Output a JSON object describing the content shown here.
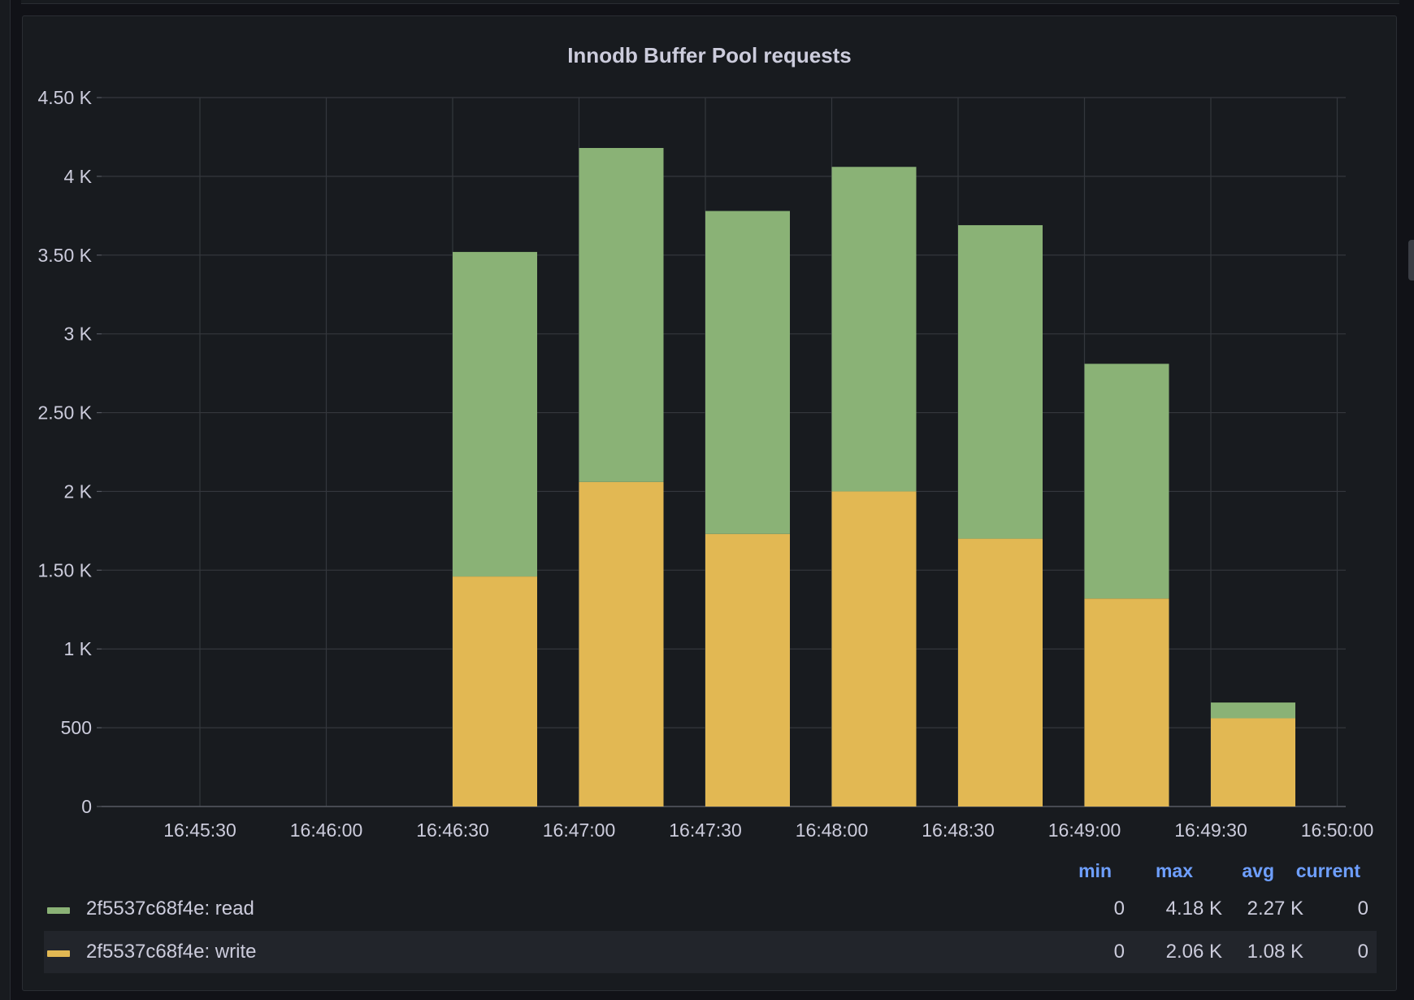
{
  "panel": {
    "title": "Innodb Buffer Pool requests"
  },
  "chart_data": {
    "type": "bar",
    "stacked": true,
    "title": "Innodb Buffer Pool requests",
    "xlabel": "",
    "ylabel": "",
    "ylim": [
      0,
      4500
    ],
    "y_ticks": [
      "0",
      "500",
      "1 K",
      "1.50 K",
      "2 K",
      "2.50 K",
      "3 K",
      "3.50 K",
      "4 K",
      "4.50 K"
    ],
    "y_tick_values": [
      0,
      500,
      1000,
      1500,
      2000,
      2500,
      3000,
      3500,
      4000,
      4500
    ],
    "x_ticks": [
      "16:45:30",
      "16:46:00",
      "16:46:30",
      "16:47:00",
      "16:47:30",
      "16:48:00",
      "16:48:30",
      "16:49:00",
      "16:49:30",
      "16:50:00"
    ],
    "categories": [
      "16:46:30",
      "16:47:00",
      "16:47:30",
      "16:48:00",
      "16:48:30",
      "16:49:00",
      "16:49:30"
    ],
    "grid": true,
    "series": [
      {
        "name": "2f5537c68f4e: write",
        "color": "#e2b853",
        "values": [
          1460,
          2060,
          1730,
          2000,
          1700,
          1320,
          560
        ]
      },
      {
        "name": "2f5537c68f4e: read",
        "color": "#8ab276",
        "values": [
          2060,
          2120,
          2050,
          2060,
          1990,
          1490,
          100
        ]
      }
    ]
  },
  "legend": {
    "headers": {
      "min": "min",
      "max": "max",
      "avg": "avg",
      "current": "current"
    },
    "rows": [
      {
        "name": "2f5537c68f4e: read",
        "color": "#8ab276",
        "min": "0",
        "max": "4.18 K",
        "avg": "2.27 K",
        "current": "0"
      },
      {
        "name": "2f5537c68f4e: write",
        "color": "#e2b853",
        "min": "0",
        "max": "2.06 K",
        "avg": "1.08 K",
        "current": "0"
      }
    ]
  }
}
